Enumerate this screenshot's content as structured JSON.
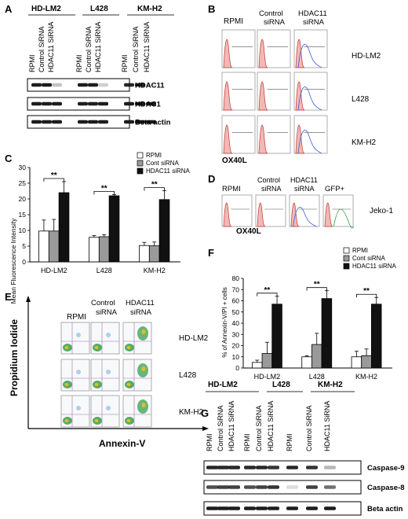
{
  "panels": {
    "a": {
      "letter": "A",
      "groups": [
        "HD-LM2",
        "L428",
        "KM-H2"
      ],
      "lanes": [
        "RPMI",
        "Control SiRNA",
        "HDAC11 SiRNA",
        "RPMI",
        "Control SiRNA",
        "HDAC11 SiRNA",
        "RPMI",
        "Control SiRNA",
        "HDAC11 SiRNA"
      ],
      "blots": [
        "HDAC11",
        "HDAC1",
        "Beta actin"
      ]
    },
    "b": {
      "letter": "B",
      "columns": [
        "RPMI",
        "Control siRNA",
        "HDAC11 siRNA"
      ],
      "rows": [
        "HD-LM2",
        "L428",
        "KM-H2"
      ],
      "xlabel": "OX40L"
    },
    "c": {
      "letter": "C",
      "ylabel": "Mean Fluorescence Intensity",
      "legend": [
        "RPMI",
        "Cont siRNA",
        "HDAC11 siRNA"
      ],
      "sig": "**"
    },
    "d": {
      "letter": "D",
      "columns": [
        "RPMI",
        "Control siRNA",
        "HDAC11 siRNA",
        "GFP+"
      ],
      "row_label": "Jeko-1",
      "xlabel": "OX40L"
    },
    "e": {
      "letter": "E",
      "columns": [
        "RPMI",
        "Control siRNA",
        "HDAC11 siRNA"
      ],
      "rows": [
        "HD-LM2",
        "L428",
        "KM-H2"
      ],
      "ylabel": "Propidium Iodide",
      "xlabel": "Annexin-V"
    },
    "f": {
      "letter": "F",
      "ylabel": "% of Annexin-V/PI + cells",
      "legend": [
        "RPMI",
        "Cont siRNA",
        "HDAC11 siRNA"
      ],
      "sig": "**"
    },
    "g": {
      "letter": "G",
      "groups": [
        "HD-LM2",
        "L428",
        "KM-H2"
      ],
      "lanes": [
        "RPMI",
        "Control SiRNA",
        "HDAC11 SiRNA",
        "RPMI",
        "Control SiRNA",
        "HDAC11 SiRNA",
        "RPMI",
        "Control SiRNA",
        "HDAC11 SiRNA"
      ],
      "blots": [
        "Caspase-9",
        "Caspase-8",
        "Beta actin"
      ]
    }
  },
  "chart_data": [
    {
      "id": "C",
      "type": "bar",
      "categories": [
        "HD-LM2",
        "L428",
        "KM-H2"
      ],
      "series": [
        {
          "name": "RPMI",
          "values": [
            9.8,
            7.8,
            5.2
          ],
          "errors": [
            3.5,
            0.6,
            1.0
          ],
          "color": "#ffffff"
        },
        {
          "name": "Cont siRNA",
          "values": [
            9.8,
            8.0,
            5.1
          ],
          "errors": [
            3.7,
            0.6,
            1.2
          ],
          "color": "#9a9a9a"
        },
        {
          "name": "HDAC11 siRNA",
          "values": [
            22.0,
            21.0,
            19.8
          ],
          "errors": [
            3.5,
            0.4,
            2.8
          ],
          "color": "#111111"
        }
      ],
      "ylabel": "Mean Fluorescence Intensity",
      "ylim": [
        0,
        30
      ],
      "yticks": [
        0,
        5,
        10,
        15,
        20,
        25,
        30
      ],
      "significance": [
        "**",
        "**",
        "**"
      ],
      "legend_position": "top-right"
    },
    {
      "id": "F",
      "type": "bar",
      "categories": [
        "HD-LM2",
        "L428",
        "KM-H2"
      ],
      "series": [
        {
          "name": "RPMI",
          "values": [
            5,
            10,
            10
          ],
          "errors": [
            2,
            1,
            5
          ],
          "color": "#ffffff"
        },
        {
          "name": "Cont siRNA",
          "values": [
            13,
            21,
            11
          ],
          "errors": [
            10,
            10,
            6
          ],
          "color": "#9a9a9a"
        },
        {
          "name": "HDAC11 siRNA",
          "values": [
            57,
            62,
            57
          ],
          "errors": [
            7,
            7,
            6
          ],
          "color": "#111111"
        }
      ],
      "ylabel": "% of Annexin-V/PI + cells",
      "ylim": [
        0,
        80
      ],
      "yticks": [
        0,
        10,
        20,
        30,
        40,
        50,
        60,
        70,
        80
      ],
      "significance": [
        "**",
        "**",
        "**"
      ],
      "legend_position": "top-right"
    }
  ]
}
